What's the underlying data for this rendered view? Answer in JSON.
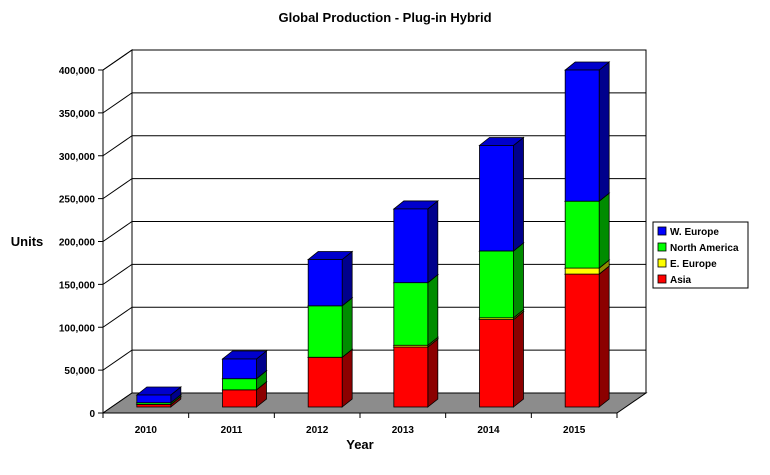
{
  "chart_data": {
    "type": "bar",
    "stacked": true,
    "three_d": true,
    "title": "Global Production - Plug-in Hybrid",
    "xlabel": "Year",
    "ylabel": "Units",
    "categories": [
      "2010",
      "2011",
      "2012",
      "2013",
      "2014",
      "2015"
    ],
    "ylim": [
      0,
      400000
    ],
    "yticks": [
      "0",
      "50,000",
      "100,000",
      "150,000",
      "200,000",
      "250,000",
      "300,000",
      "350,000",
      "400,000"
    ],
    "grid": true,
    "legend_position": "right",
    "series": [
      {
        "name": "Asia",
        "color": "#ff0000",
        "values": [
          3000,
          20000,
          58000,
          70000,
          102000,
          155000
        ]
      },
      {
        "name": "E. Europe",
        "color": "#ffff00",
        "values": [
          0,
          0,
          0,
          2000,
          2000,
          7000
        ]
      },
      {
        "name": "North America",
        "color": "#00ff00",
        "values": [
          2000,
          13000,
          60000,
          73000,
          78000,
          78000
        ]
      },
      {
        "name": "W. Europe",
        "color": "#0000ff",
        "values": [
          9000,
          23000,
          54000,
          86000,
          123000,
          153000
        ]
      }
    ]
  }
}
